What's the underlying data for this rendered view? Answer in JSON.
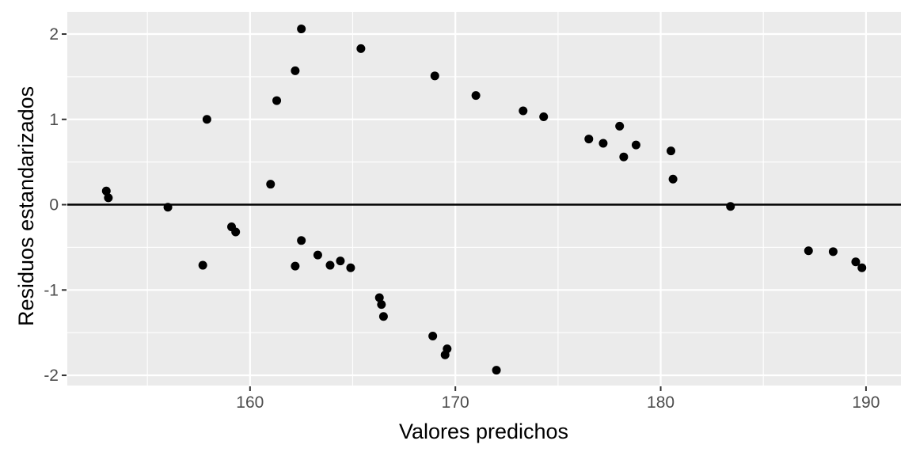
{
  "chart_data": {
    "type": "scatter",
    "title": "",
    "xlabel": "Valores predichos",
    "ylabel": "Residuos estandarizados",
    "xlim": [
      151.1,
      191.7
    ],
    "ylim": [
      -2.12,
      2.26
    ],
    "x_ticks": [
      160,
      170,
      180,
      190
    ],
    "x_minor_ticks": [
      155,
      165,
      175,
      185
    ],
    "y_ticks": [
      -2,
      -1,
      0,
      1,
      2
    ],
    "y_minor_ticks": [
      -1.5,
      -0.5,
      0.5,
      1.5
    ],
    "reference_line_y": 0,
    "grid": "on",
    "legend": "none",
    "theme": {
      "panel_bg": "#EBEBEB",
      "grid_color": "#FFFFFF",
      "point_color": "#000000",
      "axis_text_color": "#4D4D4D",
      "axis_title_color": "#000000",
      "tick_color": "#333333",
      "ref_line_color": "#000000"
    },
    "points": [
      [
        153.0,
        0.16
      ],
      [
        153.1,
        0.08
      ],
      [
        156.0,
        -0.03
      ],
      [
        157.7,
        -0.71
      ],
      [
        157.9,
        1.0
      ],
      [
        159.1,
        -0.26
      ],
      [
        159.3,
        -0.32
      ],
      [
        161.0,
        0.24
      ],
      [
        161.3,
        1.22
      ],
      [
        162.2,
        1.57
      ],
      [
        162.2,
        -0.72
      ],
      [
        162.5,
        2.06
      ],
      [
        162.5,
        -0.42
      ],
      [
        163.3,
        -0.59
      ],
      [
        163.9,
        -0.71
      ],
      [
        164.4,
        -0.66
      ],
      [
        164.9,
        -0.74
      ],
      [
        165.4,
        1.83
      ],
      [
        166.3,
        -1.09
      ],
      [
        166.4,
        -1.17
      ],
      [
        166.5,
        -1.31
      ],
      [
        168.9,
        -1.54
      ],
      [
        169.0,
        1.51
      ],
      [
        169.5,
        -1.76
      ],
      [
        169.6,
        -1.69
      ],
      [
        171.0,
        1.28
      ],
      [
        172.0,
        -1.94
      ],
      [
        173.3,
        1.1
      ],
      [
        174.3,
        1.03
      ],
      [
        176.5,
        0.77
      ],
      [
        177.2,
        0.72
      ],
      [
        178.0,
        0.92
      ],
      [
        178.2,
        0.56
      ],
      [
        178.8,
        0.7
      ],
      [
        180.5,
        0.63
      ],
      [
        180.6,
        0.3
      ],
      [
        183.4,
        -0.02
      ],
      [
        187.2,
        -0.54
      ],
      [
        188.4,
        -0.55
      ],
      [
        189.5,
        -0.67
      ],
      [
        189.8,
        -0.74
      ]
    ]
  }
}
